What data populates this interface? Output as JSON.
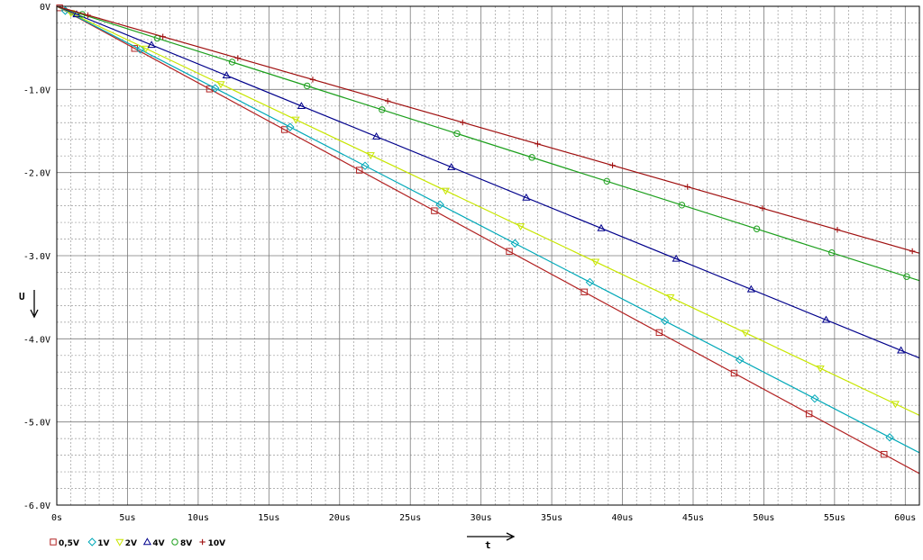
{
  "chart_data": {
    "type": "line",
    "title": "",
    "xlabel": "t",
    "ylabel": "U",
    "xlim": [
      0,
      61
    ],
    "ylim": [
      -6.0,
      0
    ],
    "x_unit": "us",
    "grid": true,
    "legend_placement": "bottom-left",
    "x_ticks": [
      {
        "value": 0,
        "label": "0s"
      },
      {
        "value": 5,
        "label": "5us"
      },
      {
        "value": 10,
        "label": "10us"
      },
      {
        "value": 15,
        "label": "15us"
      },
      {
        "value": 20,
        "label": "20us"
      },
      {
        "value": 25,
        "label": "25us"
      },
      {
        "value": 30,
        "label": "30us"
      },
      {
        "value": 35,
        "label": "35us"
      },
      {
        "value": 40,
        "label": "40us"
      },
      {
        "value": 45,
        "label": "45us"
      },
      {
        "value": 50,
        "label": "50us"
      },
      {
        "value": 55,
        "label": "55us"
      },
      {
        "value": 60,
        "label": "60us"
      }
    ],
    "y_ticks": [
      {
        "value": 0,
        "label": "0V"
      },
      {
        "value": -1,
        "label": "-1.0V"
      },
      {
        "value": -2,
        "label": "-2.0V"
      },
      {
        "value": -3,
        "label": "-3.0V"
      },
      {
        "value": -4,
        "label": "-4.0V"
      },
      {
        "value": -5,
        "label": "-5.0V"
      },
      {
        "value": -6,
        "label": "-6.0V"
      }
    ],
    "series": [
      {
        "name": "0,5V",
        "color": "#b22222",
        "marker": "square",
        "x": [
          0,
          61
        ],
        "y": [
          0,
          -5.62
        ]
      },
      {
        "name": "1V",
        "color": "#00a8b8",
        "marker": "diamond",
        "x": [
          0,
          61
        ],
        "y": [
          0,
          -5.37
        ]
      },
      {
        "name": "2V",
        "color": "#c8e600",
        "marker": "triangle-down",
        "x": [
          0,
          61
        ],
        "y": [
          0,
          -4.92
        ]
      },
      {
        "name": "4V",
        "color": "#00008b",
        "marker": "triangle-up",
        "x": [
          0,
          61
        ],
        "y": [
          0,
          -4.23
        ]
      },
      {
        "name": "8V",
        "color": "#1ea01e",
        "marker": "circle",
        "x": [
          0,
          61
        ],
        "y": [
          0,
          -3.3
        ]
      },
      {
        "name": "10V",
        "color": "#a01010",
        "marker": "plus",
        "x": [
          0,
          61
        ],
        "y": [
          0,
          -2.97
        ]
      }
    ]
  }
}
